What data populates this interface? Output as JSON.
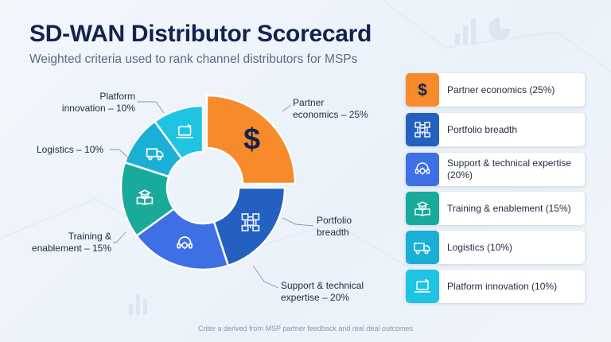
{
  "header": {
    "title": "SD-WAN Distributor Scorecard",
    "subtitle": "Weighted criteria used to rank channel distributors for MSPs"
  },
  "chart_data": {
    "type": "pie",
    "variant": "donut",
    "categories": [
      "Partner economics",
      "Portfolio breadth",
      "Support & technical expertise",
      "Training & enablement",
      "Logistics",
      "Platform innovation"
    ],
    "values": [
      25,
      20,
      20,
      15,
      10,
      10
    ],
    "unit": "%",
    "slice_labels": [
      [
        "Partner",
        "economics – 25%"
      ],
      [
        "Portfolio",
        "breadth"
      ],
      [
        "Support & technical",
        "expertise – 20%"
      ],
      [
        "Training &",
        "enablement – 15%"
      ],
      [
        "Logistics – 10%"
      ],
      [
        "Platform",
        "innovation – 10%"
      ]
    ],
    "colors": [
      "#f78a2a",
      "#2360c0",
      "#3f6fe4",
      "#19aa9b",
      "#1ab0d6",
      "#1ec4e2"
    ],
    "icons": [
      "dollar-icon",
      "network-icon",
      "headset-gear-icon",
      "book-cap-icon",
      "truck-icon",
      "laptop-icon"
    ]
  },
  "legend": [
    {
      "label": "Partner economics (25%)",
      "color": "#f78a2a",
      "icon": "dollar-icon"
    },
    {
      "label": "Portfolio breadth",
      "color": "#2360c0",
      "icon": "network-icon"
    },
    {
      "label": "Support & technical expertise (20%)",
      "color": "#3f6fe4",
      "icon": "headset-gear-icon"
    },
    {
      "label": "Training & enablement (15%)",
      "color": "#19aa9b",
      "icon": "book-cap-icon"
    },
    {
      "label": "Logistics (10%)",
      "color": "#1ab0d6",
      "icon": "truck-icon"
    },
    {
      "label": "Platform innovation (10%)",
      "color": "#1ec4e2",
      "icon": "laptop-icon"
    }
  ],
  "footnote": "Criter a derived from MSP partner feedback and real deal outcomes"
}
